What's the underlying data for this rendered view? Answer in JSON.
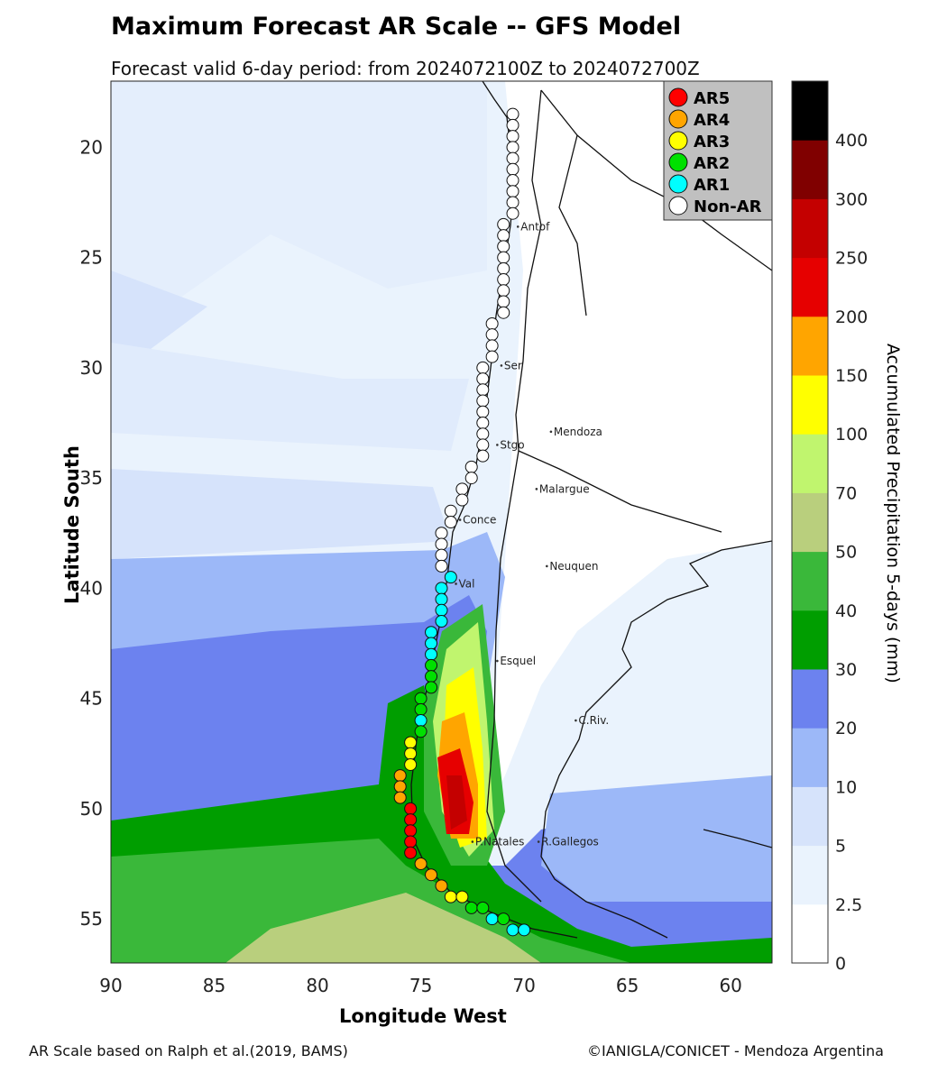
{
  "title": "Maximum Forecast AR Scale -- GFS Model",
  "subtitle": "Forecast valid 6-day period: from 2024072100Z to 2024072700Z",
  "xlabel": "Longitude West",
  "ylabel": "Latitude South",
  "colorbar_label": "Accumulated Precipitation 5-days (mm)",
  "footer_left": "AR Scale based on Ralph et al.(2019, BAMS)",
  "footer_right": "©IANIGLA/CONICET - Mendoza Argentina",
  "x_ticks": [
    "90",
    "85",
    "80",
    "75",
    "70",
    "65",
    "60"
  ],
  "y_ticks": [
    "20",
    "25",
    "30",
    "35",
    "40",
    "45",
    "50",
    "55"
  ],
  "x_tick_values": [
    90,
    85,
    80,
    75,
    70,
    65,
    60
  ],
  "y_tick_values": [
    20,
    25,
    30,
    35,
    40,
    45,
    50,
    55
  ],
  "extent": {
    "lon_w": [
      90,
      58
    ],
    "lat_s": [
      17,
      57
    ]
  },
  "legend": [
    {
      "label": "AR5",
      "color": "#ff0000"
    },
    {
      "label": "AR4",
      "color": "#ffa500"
    },
    {
      "label": "AR3",
      "color": "#ffff00"
    },
    {
      "label": "AR2",
      "color": "#00e000"
    },
    {
      "label": "AR1",
      "color": "#00ffff"
    },
    {
      "label": "Non-AR",
      "color": "#ffffff"
    }
  ],
  "colorbar": {
    "levels": [
      0,
      2.5,
      5,
      10,
      20,
      30,
      40,
      50,
      70,
      100,
      150,
      200,
      250,
      300,
      400
    ],
    "tick_labels": [
      "0",
      "2.5",
      "5",
      "10",
      "20",
      "30",
      "40",
      "50",
      "70",
      "100",
      "150",
      "200",
      "250",
      "300",
      "400"
    ],
    "colors": [
      "#ffffff",
      "#eaf3fd",
      "#d6e3fb",
      "#9cb8f8",
      "#6c82ef",
      "#009e00",
      "#3ab83a",
      "#b9cf7d",
      "#c0f56e",
      "#ffff00",
      "#ffa500",
      "#e60000",
      "#c40000",
      "#800000",
      "#000000"
    ]
  },
  "cities": [
    {
      "name": "Antof",
      "lon": 70.3,
      "lat": 23.6
    },
    {
      "name": "Ser",
      "lon": 71.1,
      "lat": 29.9
    },
    {
      "name": "Mendoza",
      "lon": 68.7,
      "lat": 32.9
    },
    {
      "name": "Stgo",
      "lon": 71.3,
      "lat": 33.5
    },
    {
      "name": "Malargue",
      "lon": 69.4,
      "lat": 35.5
    },
    {
      "name": "Conce",
      "lon": 73.1,
      "lat": 36.9
    },
    {
      "name": "Neuquen",
      "lon": 68.9,
      "lat": 39.0
    },
    {
      "name": "Val",
      "lon": 73.3,
      "lat": 39.8
    },
    {
      "name": "Esquel",
      "lon": 71.3,
      "lat": 43.3
    },
    {
      "name": "C.Riv.",
      "lon": 67.5,
      "lat": 46.0
    },
    {
      "name": "P.Natales",
      "lon": 72.5,
      "lat": 51.5
    },
    {
      "name": "R.Gallegos",
      "lon": 69.3,
      "lat": 51.5
    }
  ],
  "ar_points": [
    [
      70.55,
      18.5,
      "Non-AR"
    ],
    [
      70.55,
      19.0,
      "Non-AR"
    ],
    [
      70.55,
      19.5,
      "Non-AR"
    ],
    [
      70.55,
      20.0,
      "Non-AR"
    ],
    [
      70.55,
      20.5,
      "Non-AR"
    ],
    [
      70.55,
      21.0,
      "Non-AR"
    ],
    [
      70.55,
      21.5,
      "Non-AR"
    ],
    [
      70.55,
      22.0,
      "Non-AR"
    ],
    [
      70.55,
      22.5,
      "Non-AR"
    ],
    [
      70.55,
      23.0,
      "Non-AR"
    ],
    [
      71.0,
      23.5,
      "Non-AR"
    ],
    [
      71.0,
      24.0,
      "Non-AR"
    ],
    [
      71.0,
      24.5,
      "Non-AR"
    ],
    [
      71.0,
      25.0,
      "Non-AR"
    ],
    [
      71.0,
      25.5,
      "Non-AR"
    ],
    [
      71.0,
      26.0,
      "Non-AR"
    ],
    [
      71.0,
      26.5,
      "Non-AR"
    ],
    [
      71.0,
      27.0,
      "Non-AR"
    ],
    [
      71.0,
      27.5,
      "Non-AR"
    ],
    [
      71.55,
      28.0,
      "Non-AR"
    ],
    [
      71.55,
      28.5,
      "Non-AR"
    ],
    [
      71.55,
      29.0,
      "Non-AR"
    ],
    [
      71.55,
      29.5,
      "Non-AR"
    ],
    [
      72.0,
      30.0,
      "Non-AR"
    ],
    [
      72.0,
      30.5,
      "Non-AR"
    ],
    [
      72.0,
      31.0,
      "Non-AR"
    ],
    [
      72.0,
      31.5,
      "Non-AR"
    ],
    [
      72.0,
      32.0,
      "Non-AR"
    ],
    [
      72.0,
      32.5,
      "Non-AR"
    ],
    [
      72.0,
      33.0,
      "Non-AR"
    ],
    [
      72.0,
      33.5,
      "Non-AR"
    ],
    [
      72.0,
      34.0,
      "Non-AR"
    ],
    [
      72.55,
      34.5,
      "Non-AR"
    ],
    [
      72.55,
      35.0,
      "Non-AR"
    ],
    [
      73.0,
      35.5,
      "Non-AR"
    ],
    [
      73.0,
      36.0,
      "Non-AR"
    ],
    [
      73.55,
      36.5,
      "Non-AR"
    ],
    [
      73.55,
      37.0,
      "Non-AR"
    ],
    [
      74.0,
      37.5,
      "Non-AR"
    ],
    [
      74.0,
      38.0,
      "Non-AR"
    ],
    [
      74.0,
      38.5,
      "Non-AR"
    ],
    [
      74.0,
      39.0,
      "Non-AR"
    ],
    [
      73.55,
      39.5,
      "AR1"
    ],
    [
      74.0,
      40.0,
      "AR1"
    ],
    [
      74.0,
      40.5,
      "AR1"
    ],
    [
      74.0,
      41.0,
      "AR1"
    ],
    [
      74.0,
      41.5,
      "AR1"
    ],
    [
      74.5,
      42.0,
      "AR1"
    ],
    [
      74.5,
      42.5,
      "AR1"
    ],
    [
      74.5,
      43.0,
      "AR1"
    ],
    [
      74.5,
      43.5,
      "AR2"
    ],
    [
      74.5,
      44.0,
      "AR2"
    ],
    [
      74.5,
      44.5,
      "AR2"
    ],
    [
      75.0,
      45.0,
      "AR2"
    ],
    [
      75.0,
      45.5,
      "AR2"
    ],
    [
      75.0,
      46.0,
      "AR1"
    ],
    [
      75.0,
      46.5,
      "AR2"
    ],
    [
      75.5,
      47.0,
      "AR3"
    ],
    [
      75.5,
      47.5,
      "AR3"
    ],
    [
      75.5,
      48.0,
      "AR3"
    ],
    [
      76.0,
      48.5,
      "AR4"
    ],
    [
      76.0,
      49.0,
      "AR4"
    ],
    [
      76.0,
      49.5,
      "AR4"
    ],
    [
      75.5,
      50.0,
      "AR5"
    ],
    [
      75.5,
      50.5,
      "AR5"
    ],
    [
      75.5,
      51.0,
      "AR5"
    ],
    [
      75.5,
      51.5,
      "AR5"
    ],
    [
      75.5,
      52.0,
      "AR5"
    ],
    [
      75.0,
      52.5,
      "AR4"
    ],
    [
      74.5,
      53.0,
      "AR4"
    ],
    [
      74.0,
      53.5,
      "AR4"
    ],
    [
      73.55,
      54.0,
      "AR3"
    ],
    [
      73.0,
      54.0,
      "AR3"
    ],
    [
      72.55,
      54.5,
      "AR2"
    ],
    [
      72.0,
      54.5,
      "AR2"
    ],
    [
      71.55,
      55.0,
      "AR1"
    ],
    [
      71.0,
      55.0,
      "AR2"
    ],
    [
      70.55,
      55.5,
      "AR1"
    ],
    [
      70.0,
      55.5,
      "AR1"
    ]
  ]
}
